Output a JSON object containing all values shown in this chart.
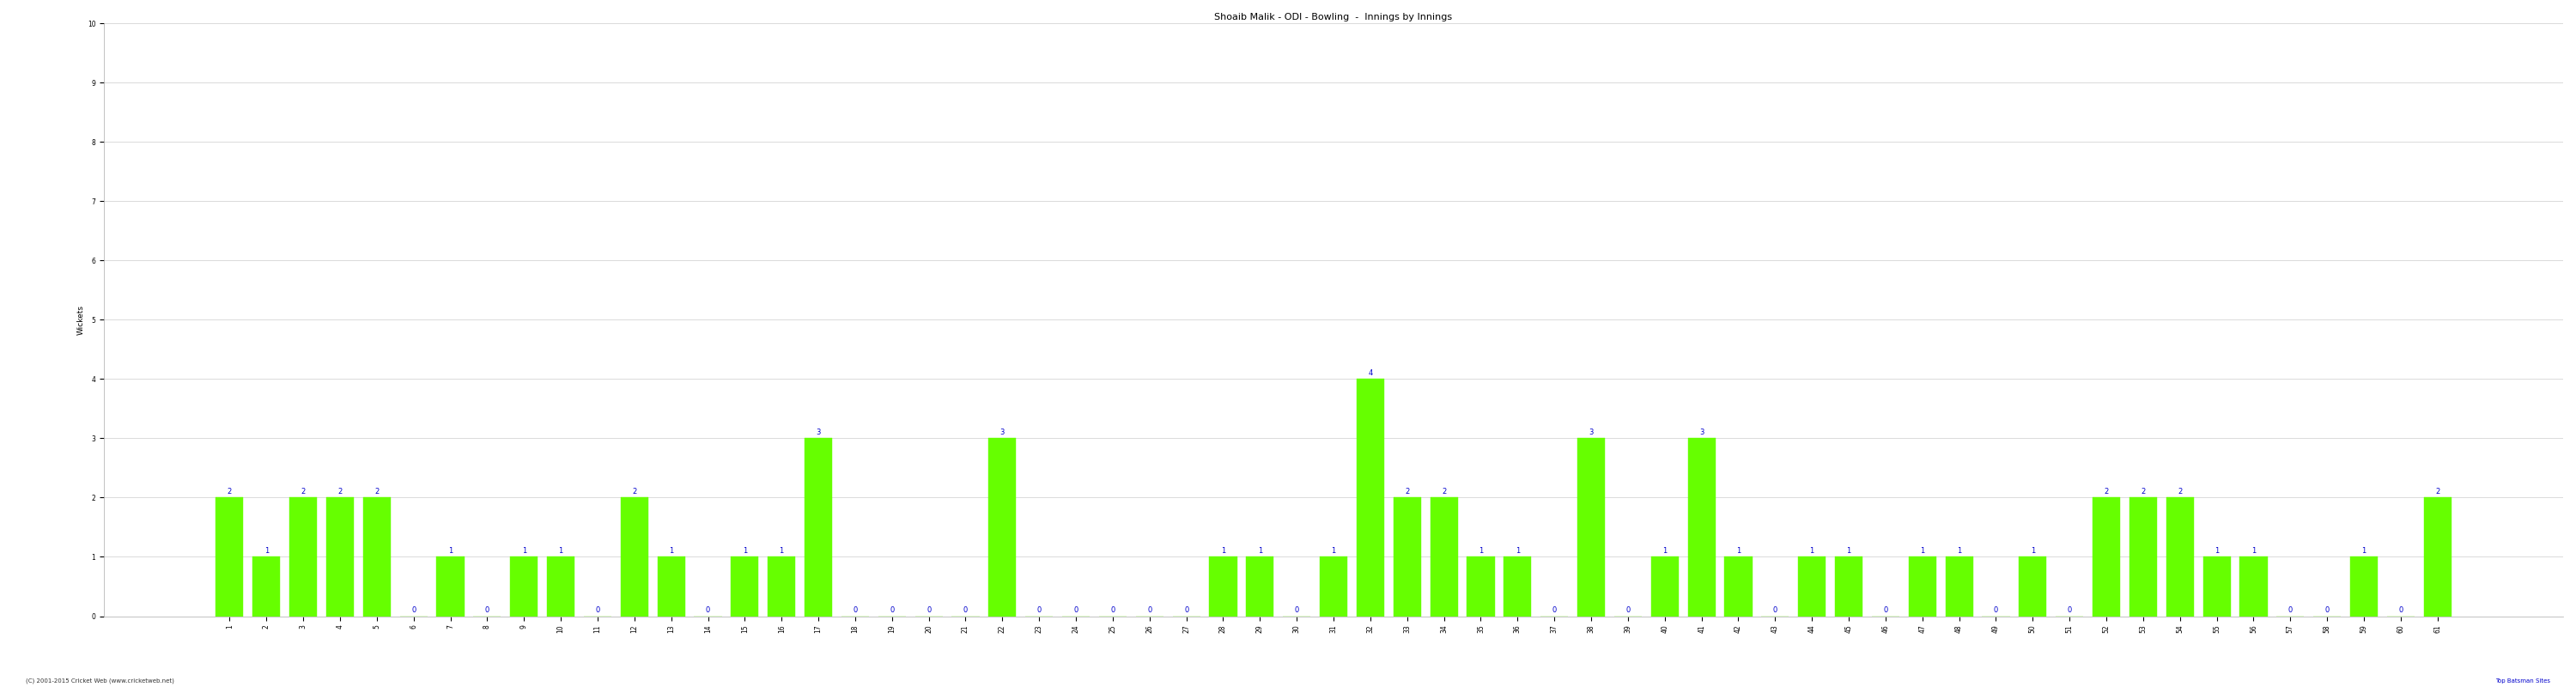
{
  "title": "Shoaib Malik - ODI - Bowling  -  Innings by Innings",
  "ylabel": "Wickets",
  "background_color": "#ffffff",
  "bar_color": "#66ff00",
  "label_color": "#0000cc",
  "grid_color": "#cccccc",
  "ylim": [
    0,
    10
  ],
  "yticks": [
    0,
    1,
    2,
    3,
    4,
    5,
    6,
    7,
    8,
    9,
    10
  ],
  "footer": "(C) 2001-2015 Cricket Web (www.cricketweb.net)",
  "footer_right": "Top Batsman Sites",
  "wickets": [
    2,
    1,
    2,
    2,
    2,
    0,
    1,
    0,
    1,
    1,
    0,
    2,
    1,
    0,
    1,
    1,
    3,
    0,
    0,
    0,
    0,
    3,
    0,
    0,
    0,
    0,
    0,
    1,
    1,
    0,
    1,
    4,
    2,
    2,
    1,
    1,
    0,
    3,
    0,
    1,
    3,
    1,
    0,
    1,
    1,
    0,
    1,
    1,
    0,
    1,
    0,
    2,
    2,
    2,
    1,
    1,
    0,
    0,
    1,
    0,
    2
  ],
  "x_labels": [
    "1",
    "2",
    "3",
    "4",
    "5",
    "6",
    "7",
    "8",
    "9",
    "10",
    "11",
    "12",
    "13",
    "14",
    "15",
    "16",
    "17",
    "18",
    "19",
    "20",
    "21",
    "22",
    "23",
    "24",
    "25",
    "26",
    "27",
    "28",
    "29",
    "30",
    "31",
    "32",
    "33",
    "34",
    "35",
    "36",
    "37",
    "38",
    "39",
    "40",
    "41",
    "42",
    "43",
    "44",
    "45",
    "46",
    "47",
    "48",
    "49",
    "50",
    "51",
    "52",
    "53",
    "54",
    "55",
    "56",
    "57",
    "58",
    "59",
    "60",
    "61"
  ],
  "title_fontsize": 8,
  "label_fontsize": 6,
  "tick_fontsize": 5.5,
  "footer_fontsize": 5,
  "bar_width": 0.75
}
